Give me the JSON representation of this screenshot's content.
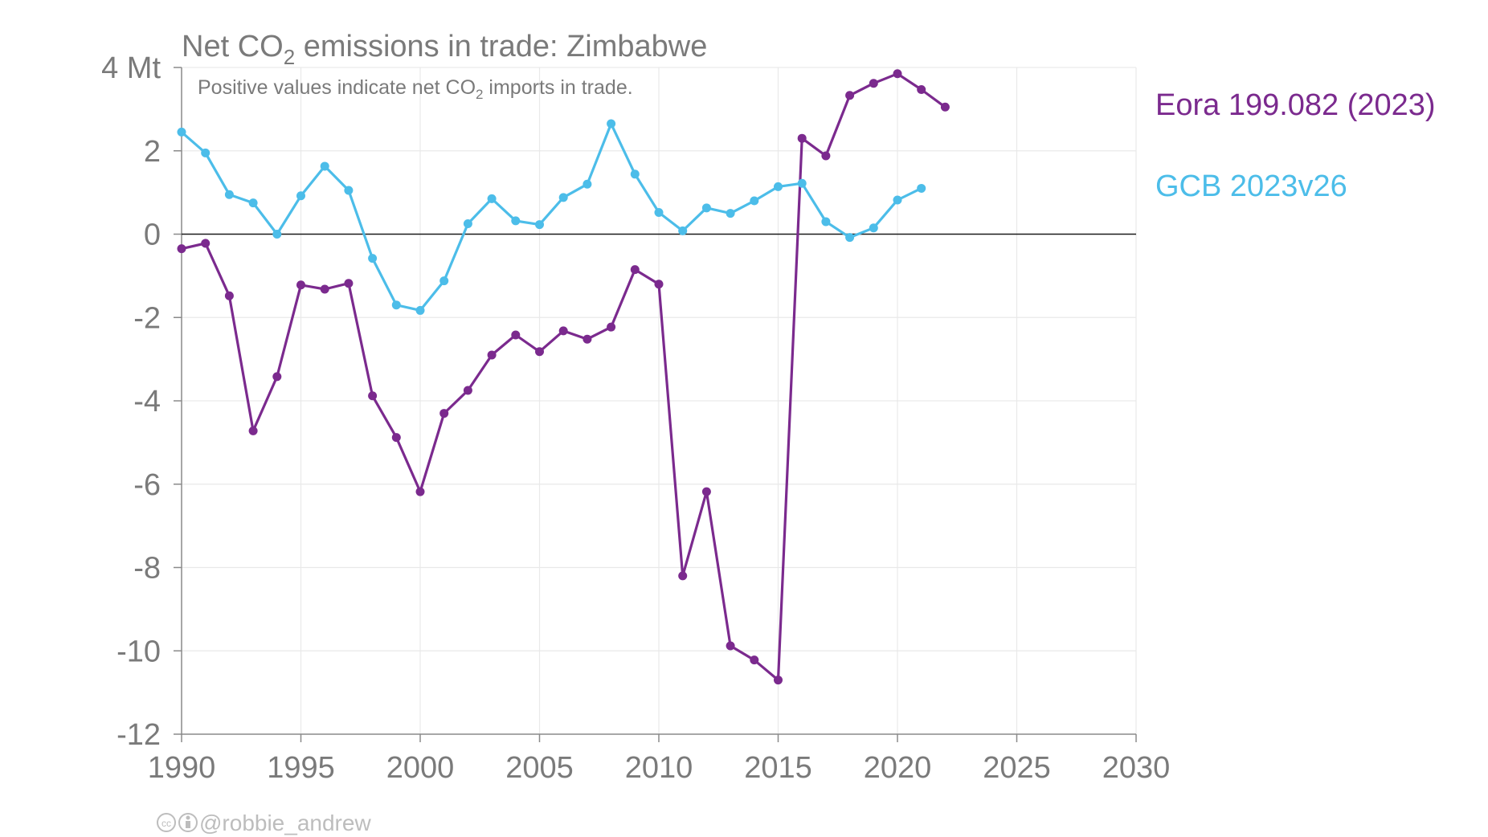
{
  "chart_data": {
    "type": "line",
    "title_main": "Net CO",
    "title_sub": "2",
    "title_rest": " emissions in trade: Zimbabwe",
    "subtitle_main": "Positive values indicate net CO",
    "subtitle_sub": "2",
    "subtitle_rest": " imports in trade.",
    "ylabel_unit": "Mt",
    "xlim": [
      1990,
      2030
    ],
    "ylim": [
      -12,
      4
    ],
    "x_ticks": [
      1990,
      1995,
      2000,
      2005,
      2010,
      2015,
      2020,
      2025,
      2030
    ],
    "y_ticks": [
      {
        "value": 4,
        "label": "4 Mt"
      },
      {
        "value": 2,
        "label": "2"
      },
      {
        "value": 0,
        "label": "0"
      },
      {
        "value": -2,
        "label": "-2"
      },
      {
        "value": -4,
        "label": "-4"
      },
      {
        "value": -6,
        "label": "-6"
      },
      {
        "value": -8,
        "label": "-8"
      },
      {
        "value": -10,
        "label": "-10"
      },
      {
        "value": -12,
        "label": "-12"
      }
    ],
    "grid": true,
    "legend": "right",
    "series": [
      {
        "name": "Eora 199.082 (2023)",
        "color": "#7b2a8e",
        "x": [
          1990,
          1991,
          1992,
          1993,
          1994,
          1995,
          1996,
          1997,
          1998,
          1999,
          2000,
          2001,
          2002,
          2003,
          2004,
          2005,
          2006,
          2007,
          2008,
          2009,
          2010,
          2011,
          2012,
          2013,
          2014,
          2015,
          2016,
          2017,
          2018,
          2019,
          2020,
          2021,
          2022
        ],
        "y": [
          -0.35,
          -0.22,
          -1.48,
          -4.72,
          -3.42,
          -1.22,
          -1.32,
          -1.18,
          -3.88,
          -4.88,
          -6.18,
          -4.3,
          -3.75,
          -2.9,
          -2.42,
          -2.82,
          -2.32,
          -2.52,
          -2.23,
          -0.85,
          -1.2,
          -8.2,
          -6.18,
          -9.88,
          -10.22,
          -10.7,
          2.3,
          1.88,
          3.33,
          3.62,
          3.85,
          3.47,
          3.05
        ]
      },
      {
        "name": "GCB 2023v26",
        "color": "#4cbde9",
        "x": [
          1990,
          1991,
          1992,
          1993,
          1994,
          1995,
          1996,
          1997,
          1998,
          1999,
          2000,
          2001,
          2002,
          2003,
          2004,
          2005,
          2006,
          2007,
          2008,
          2009,
          2010,
          2011,
          2012,
          2013,
          2014,
          2015,
          2016,
          2017,
          2018,
          2019,
          2020,
          2021
        ],
        "y": [
          2.45,
          1.95,
          0.95,
          0.75,
          0.0,
          0.92,
          1.63,
          1.05,
          -0.58,
          -1.7,
          -1.83,
          -1.12,
          0.25,
          0.85,
          0.32,
          0.23,
          0.88,
          1.2,
          2.65,
          1.44,
          0.52,
          0.08,
          0.63,
          0.5,
          0.8,
          1.14,
          1.22,
          0.3,
          -0.08,
          0.15,
          0.82,
          1.1
        ]
      }
    ],
    "credit": "@robbie_andrew"
  }
}
